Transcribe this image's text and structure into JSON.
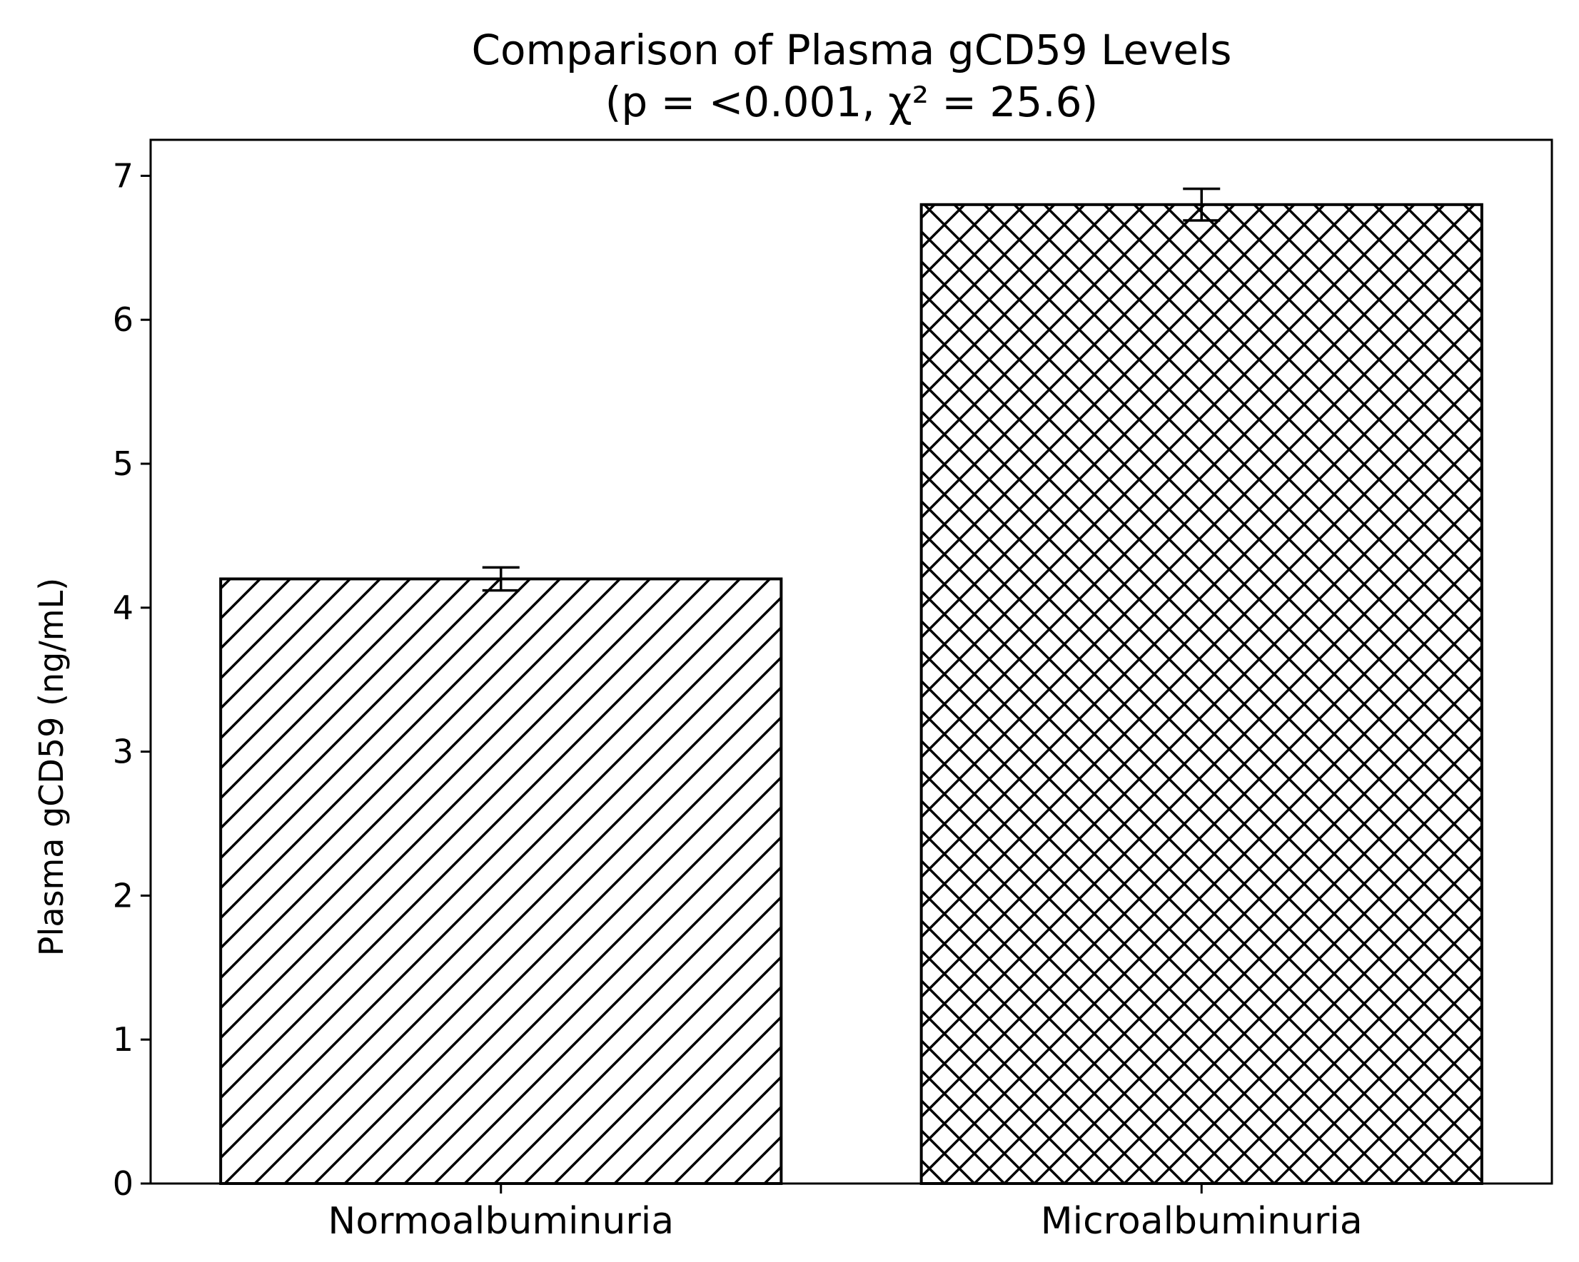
{
  "chart_data": {
    "type": "bar",
    "title": "Comparison of Plasma gCD59 Levels",
    "subtitle": "(p = <0.001, χ² = 25.6)",
    "xlabel": "",
    "ylabel": "Plasma gCD59 (ng/mL)",
    "ylim": [
      0,
      7.25
    ],
    "yticks": [
      0,
      1,
      2,
      3,
      4,
      5,
      6,
      7
    ],
    "categories": [
      "Normoalbuminuria",
      "Microalbuminuria"
    ],
    "values": [
      4.2,
      6.8
    ],
    "errors": [
      0.08,
      0.11
    ],
    "hatches": [
      "diagonal",
      "crosshatch"
    ],
    "bar_fill": "#ffffff",
    "bar_edge": "#000000",
    "grid": false,
    "legend": "none"
  }
}
